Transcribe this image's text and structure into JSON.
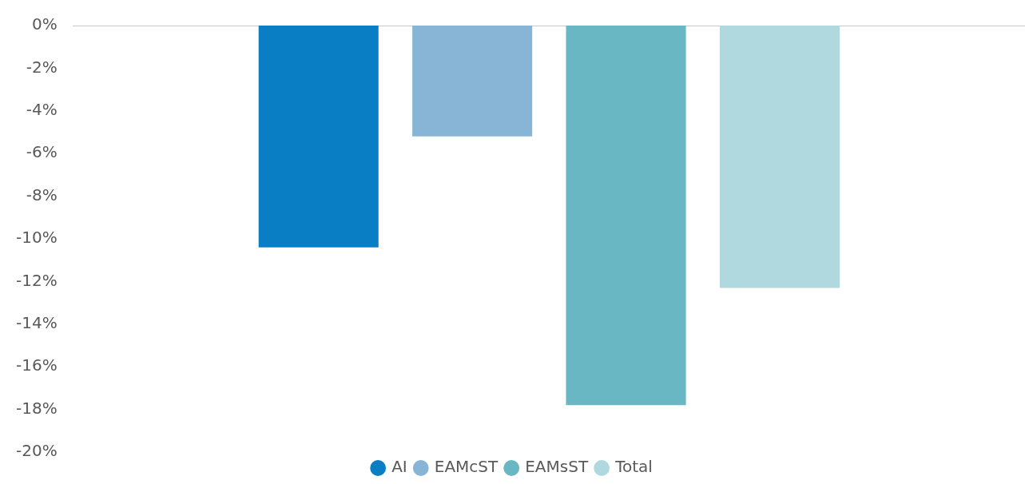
{
  "chart_data": {
    "type": "bar",
    "categories": [
      null
    ],
    "series": [
      {
        "name": "AI",
        "color": "#0a7ec4",
        "values": [
          -10.4
        ]
      },
      {
        "name": "EAMcST",
        "color": "#88b4d6",
        "values": [
          -5.2
        ]
      },
      {
        "name": "EAMsST",
        "color": "#6ab7c4",
        "values": [
          -17.8
        ]
      },
      {
        "name": "Total",
        "color": "#b0d8df",
        "values": [
          -12.3
        ]
      }
    ],
    "ylim": [
      -20,
      0
    ],
    "yticks": [
      {
        "value": 0,
        "label": "0%"
      },
      {
        "value": -2,
        "label": "-2%"
      },
      {
        "value": -4,
        "label": "-4%"
      },
      {
        "value": -6,
        "label": "-6%"
      },
      {
        "value": -8,
        "label": "-8%"
      },
      {
        "value": -10,
        "label": "-10%"
      },
      {
        "value": -12,
        "label": "-12%"
      },
      {
        "value": -14,
        "label": "-14%"
      },
      {
        "value": -16,
        "label": "-16%"
      },
      {
        "value": -18,
        "label": "-18%"
      },
      {
        "value": -20,
        "label": "-20%"
      }
    ],
    "grid": false,
    "legend": "bottom",
    "marker": "circle"
  }
}
